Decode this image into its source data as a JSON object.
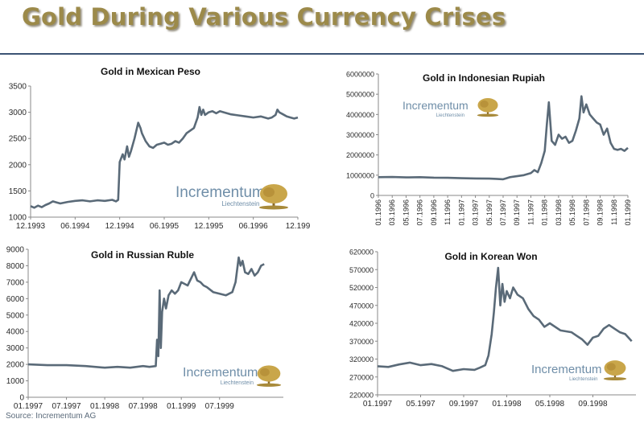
{
  "header": {
    "title": "Gold During Various Currency Crises",
    "source": "Source: Incrementum AG"
  },
  "branding": {
    "name": "Incrementum",
    "sub": "Liechtenstein"
  },
  "colors": {
    "line": "#5a6a78",
    "axis": "#888888",
    "title": "#9c8a4a",
    "brand": "#6f8ea8",
    "tree": "#c9a64a"
  },
  "chart_data": [
    {
      "type": "line",
      "title": "Gold in Mexican Peso",
      "ylim": [
        1000,
        3500
      ],
      "yticks": [
        1000,
        1500,
        2000,
        2500,
        3000,
        3500
      ],
      "ytick_labels": [
        "1000",
        "1500",
        "2000",
        "2500",
        "3000",
        "3500"
      ],
      "xlim": [
        0,
        72
      ],
      "xticks": [
        0,
        12,
        24,
        36,
        48,
        60,
        72
      ],
      "xtick_labels": [
        "12.1993",
        "06.1994",
        "12.1994",
        "06.1995",
        "12.1995",
        "06.1996",
        "12.199"
      ],
      "x": [
        0,
        1,
        2,
        3,
        4,
        5,
        6,
        7,
        8,
        10,
        12,
        14,
        16,
        18,
        20,
        22,
        23,
        23.6,
        24,
        24.8,
        25.3,
        26,
        26.5,
        27,
        28,
        29,
        29.6,
        30,
        31,
        32,
        33,
        34,
        35,
        36,
        37,
        38,
        39,
        40,
        41,
        42,
        43,
        44,
        45,
        45.5,
        46,
        46.5,
        47,
        48,
        49,
        50,
        51,
        52,
        54,
        56,
        58,
        60,
        62,
        64,
        65,
        66,
        66.5,
        67,
        68,
        69,
        70,
        71,
        72
      ],
      "values": [
        1210,
        1180,
        1220,
        1190,
        1230,
        1260,
        1300,
        1280,
        1260,
        1290,
        1310,
        1320,
        1300,
        1320,
        1310,
        1330,
        1300,
        1330,
        2050,
        2200,
        2100,
        2350,
        2150,
        2250,
        2500,
        2800,
        2700,
        2600,
        2450,
        2350,
        2320,
        2380,
        2400,
        2420,
        2380,
        2400,
        2450,
        2420,
        2500,
        2600,
        2650,
        2700,
        2900,
        3100,
        2950,
        3050,
        2950,
        3000,
        3020,
        2980,
        3020,
        3000,
        2960,
        2940,
        2920,
        2900,
        2920,
        2880,
        2900,
        2950,
        3050,
        3000,
        2960,
        2920,
        2900,
        2880,
        2900
      ]
    },
    {
      "type": "line",
      "title": "Gold in Indonesian Rupiah",
      "ylim": [
        0,
        6000000
      ],
      "yticks": [
        0,
        1000000,
        2000000,
        3000000,
        4000000,
        5000000,
        6000000
      ],
      "ytick_labels": [
        "0",
        "1000000",
        "2000000",
        "3000000",
        "4000000",
        "5000000",
        "6000000"
      ],
      "xlim": [
        0,
        36
      ],
      "xticks": [
        0,
        2,
        4,
        6,
        8,
        10,
        12,
        14,
        16,
        18,
        20,
        22,
        24,
        26,
        28,
        30,
        32,
        34,
        36
      ],
      "xtick_labels": [
        "01.1996",
        "03.1996",
        "05.1996",
        "07.1996",
        "09.1996",
        "11.1996",
        "01.1997",
        "03.1997",
        "05.1997",
        "07.1997",
        "09.1997",
        "11.1997",
        "01.1998",
        "03.1998",
        "05.1998",
        "07.1998",
        "09.1998",
        "11.1998",
        "01.1999"
      ],
      "x": [
        0,
        2,
        4,
        6,
        8,
        10,
        12,
        14,
        16,
        17,
        18,
        18.5,
        19,
        20,
        21,
        22,
        22.5,
        23,
        23.5,
        24,
        24.3,
        24.6,
        25,
        25.5,
        26,
        26.5,
        27,
        27.5,
        28,
        28.5,
        29,
        29.3,
        29.6,
        30,
        30.5,
        31,
        31.5,
        32,
        32.5,
        33,
        33.5,
        34,
        34.5,
        35,
        35.5,
        36
      ],
      "values": [
        900000,
        910000,
        890000,
        900000,
        880000,
        870000,
        850000,
        840000,
        830000,
        820000,
        800000,
        850000,
        900000,
        950000,
        1000000,
        1100000,
        1250000,
        1150000,
        1600000,
        2200000,
        3500000,
        4600000,
        2700000,
        2500000,
        3000000,
        2800000,
        2900000,
        2600000,
        2700000,
        3200000,
        3800000,
        4900000,
        4100000,
        4500000,
        4000000,
        3800000,
        3600000,
        3500000,
        3000000,
        3300000,
        2600000,
        2300000,
        2250000,
        2300000,
        2200000,
        2350000
      ]
    },
    {
      "type": "line",
      "title": "Gold in Russian Ruble",
      "ylim": [
        0,
        9000
      ],
      "yticks": [
        0,
        1000,
        2000,
        3000,
        4000,
        5000,
        6000,
        7000,
        8000,
        9000
      ],
      "ytick_labels": [
        "0",
        "1000",
        "2000",
        "3000",
        "4000",
        "5000",
        "6000",
        "7000",
        "8000",
        "9000"
      ],
      "xlim": [
        0,
        40
      ],
      "xticks": [
        0,
        6,
        12,
        18,
        24,
        30
      ],
      "xtick_labels": [
        "01.1997",
        "07.1997",
        "01.1998",
        "07.1998",
        "01.1999",
        "07.1999"
      ],
      "x": [
        0,
        3,
        6,
        9,
        12,
        14,
        16,
        18,
        19,
        20,
        20.2,
        20.4,
        20.6,
        20.8,
        21,
        21.3,
        21.6,
        22,
        22.5,
        23,
        23.5,
        24,
        25,
        26,
        26.5,
        27,
        27.5,
        28,
        29,
        30,
        31,
        32,
        32.5,
        33,
        33.3,
        33.6,
        34,
        34.5,
        35,
        35.5,
        36,
        36.5,
        37
      ],
      "values": [
        2000,
        1950,
        1950,
        1900,
        1800,
        1850,
        1800,
        1900,
        1850,
        1900,
        3500,
        2500,
        6500,
        3000,
        5200,
        6000,
        5400,
        6200,
        6500,
        6300,
        6500,
        7000,
        6800,
        7600,
        7100,
        7000,
        6800,
        6700,
        6400,
        6300,
        6200,
        6400,
        7000,
        8500,
        8000,
        8300,
        7600,
        7500,
        7800,
        7400,
        7600,
        8000,
        8100
      ]
    },
    {
      "type": "line",
      "title": "Gold in Korean Won",
      "ylim": [
        220000,
        620000
      ],
      "yticks": [
        220000,
        270000,
        320000,
        370000,
        420000,
        470000,
        520000,
        570000,
        620000
      ],
      "ytick_labels": [
        "220000",
        "270000",
        "320000",
        "370000",
        "420000",
        "470000",
        "520000",
        "570000",
        "620000"
      ],
      "xlim": [
        0,
        24
      ],
      "xticks": [
        0,
        4,
        8,
        12,
        16,
        20
      ],
      "xtick_labels": [
        "01.1997",
        "05.1997",
        "09.1997",
        "01.1998",
        "05.1998",
        "09.1998"
      ],
      "x": [
        0,
        1,
        2,
        3,
        4,
        5,
        6,
        7,
        8,
        9,
        9.5,
        10,
        10.3,
        10.6,
        10.8,
        11,
        11.2,
        11.4,
        11.6,
        11.8,
        12,
        12.3,
        12.6,
        13,
        13.5,
        14,
        14.5,
        15,
        15.5,
        16,
        17,
        18,
        18.5,
        19,
        19.5,
        20,
        20.5,
        21,
        21.5,
        22,
        22.5,
        23,
        23.3,
        23.6
      ],
      "values": [
        300000,
        298000,
        305000,
        310000,
        303000,
        306000,
        300000,
        287000,
        292000,
        290000,
        296000,
        303000,
        330000,
        390000,
        450000,
        520000,
        575000,
        470000,
        530000,
        480000,
        510000,
        490000,
        520000,
        500000,
        490000,
        460000,
        440000,
        430000,
        410000,
        420000,
        400000,
        395000,
        385000,
        375000,
        360000,
        380000,
        385000,
        405000,
        415000,
        405000,
        395000,
        390000,
        380000,
        370000
      ]
    }
  ]
}
